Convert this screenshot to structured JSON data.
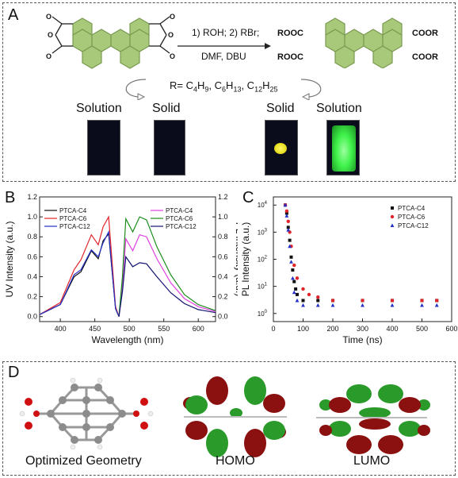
{
  "panelA": {
    "label": "A",
    "reaction_line1": "1) ROH; 2) RBr;",
    "reaction_line2": "DMF, DBU",
    "r_groups_prefix": "R= C",
    "r_groups": [
      "4",
      "H",
      "9",
      ", C",
      "6",
      "H",
      "13",
      ", C",
      "12",
      "H",
      "25"
    ],
    "groups": {
      "o": "O",
      "rooc": "ROOC",
      "coor": "COOR"
    },
    "captions": {
      "solution_left": "Solution",
      "solid_left": "Solid",
      "solid_right": "Solid",
      "solution_right": "Solution"
    },
    "colors": {
      "molecule_fill": "#a9c97a",
      "molecule_stroke": "#7a9a52",
      "vial_dark": "#0a0c1c",
      "solid_yellow": "#e8e020",
      "solution_green": "#3ff24a"
    }
  },
  "panelB": {
    "label": "B",
    "ylabel_left": "UV Intensity (a.u.)",
    "ylabel_right": "PL Intensity (a.u.)",
    "xlabel": "Wavelength (nm)",
    "x_ticks": [
      "400",
      "450",
      "500",
      "550",
      "600"
    ],
    "y_ticks_left": [
      "0.0",
      "0.2",
      "0.4",
      "0.6",
      "0.8",
      "1.0",
      "1.2"
    ],
    "y_ticks_right": [
      "0.0",
      "0.2",
      "0.4",
      "0.6",
      "0.8",
      "1.0",
      "1.2"
    ],
    "legend_left": [
      {
        "name": "PTCA-C4",
        "color": "#111111"
      },
      {
        "name": "PTCA-C6",
        "color": "#e0242a"
      },
      {
        "name": "PTCA-C12",
        "color": "#2430c8"
      }
    ],
    "legend_right": [
      {
        "name": "PTCA-C4",
        "color": "#e040e0"
      },
      {
        "name": "PTCA-C6",
        "color": "#1a8c1a"
      },
      {
        "name": "PTCA-C12",
        "color": "#101070"
      }
    ]
  },
  "panelC": {
    "label": "C",
    "ylabel": "PL Intensity (a.u.)",
    "xlabel": "Time (ns)",
    "x_ticks": [
      "0",
      "100",
      "200",
      "300",
      "400",
      "500",
      "600"
    ],
    "y_tick_base": "10",
    "y_tick_exps": [
      "0",
      "1",
      "2",
      "3",
      "4"
    ],
    "legend": [
      {
        "name": "PTCA-C4",
        "color": "#111111",
        "marker": "square"
      },
      {
        "name": "PTCA-C6",
        "color": "#e0242a",
        "marker": "circle"
      },
      {
        "name": "PTCA-C12",
        "color": "#2430c8",
        "marker": "triangle"
      }
    ]
  },
  "panelD": {
    "label": "D",
    "captions": {
      "geometry": "Optimized Geometry",
      "homo": "HOMO",
      "lumo": "LUMO"
    },
    "colors": {
      "orbital_red": "#8b1010",
      "orbital_green": "#2a9a2a",
      "carbon": "#8c8c8c",
      "oxygen": "#d01010"
    }
  },
  "chart_data": [
    {
      "type": "line",
      "xlim": [
        370,
        625
      ],
      "ylim": [
        -0.05,
        1.2
      ],
      "series": [
        {
          "name": "PTCA-C4",
          "x": [
            370,
            400,
            420,
            430,
            445,
            455,
            462,
            470,
            480,
            485
          ],
          "y": [
            0.02,
            0.12,
            0.4,
            0.45,
            0.66,
            0.58,
            0.76,
            0.83,
            0.08,
            0.0
          ]
        },
        {
          "name": "PTCA-C6",
          "x": [
            370,
            400,
            420,
            430,
            445,
            455,
            462,
            470,
            480,
            485
          ],
          "y": [
            0.02,
            0.14,
            0.47,
            0.57,
            0.82,
            0.72,
            0.9,
            1.0,
            0.1,
            0.0
          ]
        },
        {
          "name": "PTCA-C12",
          "x": [
            370,
            400,
            420,
            430,
            445,
            455,
            462,
            470,
            480,
            485
          ],
          "y": [
            0.02,
            0.12,
            0.42,
            0.47,
            0.67,
            0.6,
            0.74,
            0.85,
            0.08,
            0.0
          ]
        },
        {
          "name": "PTCA-C4",
          "x": [
            485,
            490,
            495,
            505,
            515,
            525,
            540,
            560,
            580,
            600,
            625
          ],
          "y": [
            0.0,
            0.3,
            0.78,
            0.66,
            0.82,
            0.8,
            0.58,
            0.34,
            0.18,
            0.1,
            0.05
          ]
        },
        {
          "name": "PTCA-C6",
          "x": [
            485,
            490,
            495,
            505,
            515,
            525,
            540,
            560,
            580,
            600,
            625
          ],
          "y": [
            0.0,
            0.4,
            0.98,
            0.85,
            1.0,
            0.97,
            0.7,
            0.42,
            0.22,
            0.12,
            0.06
          ]
        },
        {
          "name": "PTCA-C12",
          "x": [
            485,
            490,
            495,
            505,
            515,
            525,
            540,
            560,
            580,
            600,
            625
          ],
          "y": [
            0.0,
            0.25,
            0.6,
            0.5,
            0.54,
            0.53,
            0.4,
            0.24,
            0.13,
            0.07,
            0.04
          ]
        }
      ]
    },
    {
      "type": "scatter",
      "xlim": [
        0,
        600
      ],
      "ylim_log10": [
        -0.3,
        4.3
      ],
      "series": [
        {
          "name": "PTCA-C4",
          "x": [
            40,
            45,
            50,
            55,
            60,
            65,
            70,
            75,
            80,
            100,
            150,
            200,
            300,
            400,
            500,
            550
          ],
          "y": [
            10000,
            5000,
            1500,
            500,
            120,
            40,
            15,
            8,
            5,
            3,
            3,
            3,
            3,
            3,
            3,
            3
          ]
        },
        {
          "name": "PTCA-C6",
          "x": [
            40,
            45,
            50,
            55,
            60,
            70,
            80,
            100,
            120,
            150,
            200,
            300,
            400,
            500,
            550
          ],
          "y": [
            10000,
            6000,
            2500,
            1000,
            300,
            60,
            20,
            8,
            5,
            4,
            3,
            3,
            3,
            3,
            3
          ]
        },
        {
          "name": "PTCA-C12",
          "x": [
            40,
            45,
            50,
            55,
            60,
            65,
            70,
            80,
            100,
            150,
            200,
            300,
            400,
            500,
            550
          ],
          "y": [
            10000,
            4000,
            1200,
            300,
            80,
            20,
            6,
            3,
            2,
            2,
            2,
            2,
            2,
            2,
            2
          ]
        }
      ]
    }
  ]
}
